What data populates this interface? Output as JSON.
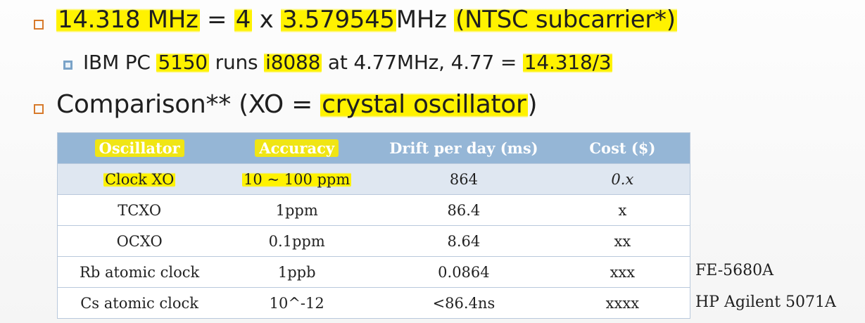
{
  "bullets": {
    "line1": {
      "p1": "14.318 MHz",
      "p2": " = ",
      "p3": "4",
      "p4": " x ",
      "p5": "3.579545",
      "p6": "MHz ",
      "p7": "(NTSC subcarrier*)"
    },
    "line2": {
      "p1": "IBM PC ",
      "p2": "5150",
      "p3": " runs ",
      "p4": "i8088",
      "p5": " at 4.77MHz, 4.77 = ",
      "p6": "14.318/3"
    },
    "line3": {
      "p1": "Comparison** (XO = ",
      "p2": "crystal oscillator",
      "p3": ")"
    }
  },
  "table": {
    "headers": [
      "Oscillator",
      "Accuracy",
      "Drift per day (ms)",
      "Cost ($)"
    ],
    "rows": [
      [
        "Clock XO",
        "10 ~ 100 ppm",
        "864",
        "0.x"
      ],
      [
        "TCXO",
        "1ppm",
        "86.4",
        "x"
      ],
      [
        "OCXO",
        "0.1ppm",
        "8.64",
        "xx"
      ],
      [
        "Rb atomic clock",
        "1ppb",
        "0.0864",
        "xxx"
      ],
      [
        "Cs atomic clock",
        "10^-12",
        "<86.4ns",
        "xxxx"
      ]
    ]
  },
  "notes": {
    "rb": "FE-5680A",
    "cs": "HP Agilent 5071A"
  },
  "colors": {
    "highlight": "#fff200",
    "header_bg": "#95b6d6",
    "shade_row": "#dfe7f1",
    "bullet": "#d77a2c",
    "sub_bullet": "#7aa3c8"
  }
}
